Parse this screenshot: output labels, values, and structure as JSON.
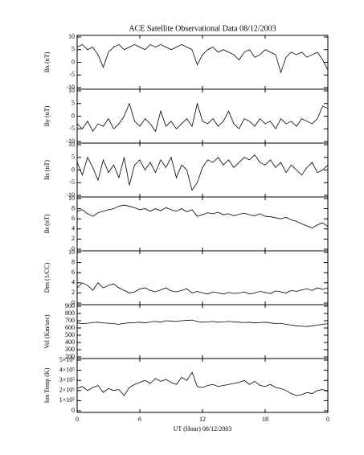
{
  "chart_data": [
    {
      "type": "line",
      "title": "ACE Satellite Observational Data   08/12/2003",
      "ylabel": "Bx (nT)",
      "color": "#000000",
      "ylim": [
        -10,
        10
      ],
      "yticks": [
        -10,
        -5,
        0,
        5,
        10
      ],
      "values": [
        6,
        7,
        5,
        6,
        3,
        -2,
        4,
        6,
        7,
        5,
        6,
        7,
        6,
        5,
        7,
        6,
        7,
        6,
        5,
        6,
        7,
        6,
        5,
        -1,
        3,
        5,
        6,
        4,
        5,
        4,
        3,
        1,
        4,
        5,
        2,
        3,
        5,
        4,
        3,
        -4,
        2,
        4,
        3,
        4,
        2,
        3,
        4,
        1,
        -3
      ]
    },
    {
      "type": "line",
      "ylabel": "By (nT)",
      "color": "#000000",
      "ylim": [
        -10,
        10
      ],
      "yticks": [
        -10,
        -5,
        0,
        5,
        10
      ],
      "values": [
        -3,
        -5,
        -2,
        -6,
        -3,
        -4,
        -1,
        -5,
        -3,
        0,
        5,
        -2,
        -4,
        -1,
        -3,
        -6,
        2,
        -4,
        -2,
        -5,
        -3,
        -1,
        -4,
        5,
        -2,
        -3,
        -1,
        -4,
        -2,
        2,
        -3,
        -5,
        -1,
        -2,
        -4,
        -1,
        -3,
        -2,
        -5,
        -1,
        -3,
        -2,
        -4,
        -1,
        -2,
        -3,
        -1,
        4,
        3
      ]
    },
    {
      "type": "line",
      "ylabel": "Bz (nT)",
      "color": "#000000",
      "ylim": [
        -10,
        10
      ],
      "yticks": [
        -10,
        -5,
        0,
        5,
        10
      ],
      "values": [
        3,
        -2,
        5,
        1,
        -4,
        4,
        -1,
        2,
        -3,
        5,
        -6,
        2,
        4,
        0,
        3,
        -1,
        4,
        1,
        5,
        -3,
        2,
        0,
        -8,
        -5,
        1,
        4,
        3,
        5,
        2,
        4,
        1,
        3,
        5,
        4,
        6,
        3,
        2,
        4,
        1,
        3,
        -1,
        2,
        0,
        -2,
        1,
        3,
        -1,
        0,
        2
      ]
    },
    {
      "type": "line",
      "ylabel": "Bt (nT)",
      "color": "#000000",
      "ylim": [
        0,
        10
      ],
      "yticks": [
        0,
        2,
        4,
        6,
        8,
        10
      ],
      "values": [
        7.5,
        7.8,
        7,
        6.5,
        7.2,
        7.5,
        7.8,
        8,
        8.5,
        8.7,
        8.5,
        8.2,
        7.8,
        8,
        7.5,
        8,
        7.6,
        8.2,
        7.8,
        7.5,
        8,
        7.4,
        7.8,
        6.5,
        6.8,
        7.2,
        7,
        7.3,
        6.8,
        7,
        6.6,
        6.9,
        7.1,
        6.8,
        6.6,
        7,
        6.5,
        6.4,
        6.2,
        6,
        6.3,
        5.8,
        5.5,
        5,
        4.6,
        4.2,
        4.8,
        5.2,
        4.5
      ]
    },
    {
      "type": "line",
      "ylabel": "Den (1/CC)",
      "color": "#000000",
      "ylim": [
        0,
        10
      ],
      "yticks": [
        0,
        2,
        4,
        6,
        8,
        10
      ],
      "values": [
        3,
        4,
        3.5,
        2.5,
        4,
        3,
        3.5,
        3.8,
        3,
        2.5,
        2,
        2.2,
        2.8,
        3,
        2.5,
        2.2,
        2.6,
        3,
        2.4,
        2.2,
        2.5,
        2.8,
        2,
        2.3,
        2,
        1.8,
        2.2,
        2,
        1.8,
        2.1,
        1.9,
        2,
        2.2,
        1.8,
        2,
        2.3,
        2.1,
        1.9,
        2.4,
        2.2,
        2,
        2.5,
        2.3,
        2.6,
        2.8,
        2.5,
        3,
        2.7,
        3
      ]
    },
    {
      "type": "line",
      "ylabel": "Vel (Km/sec)",
      "color": "#000000",
      "ylim": [
        200,
        900
      ],
      "yticks": [
        200,
        300,
        400,
        500,
        600,
        700,
        800,
        900
      ],
      "values": [
        670,
        660,
        665,
        675,
        680,
        670,
        665,
        660,
        650,
        665,
        670,
        675,
        680,
        670,
        685,
        690,
        680,
        700,
        695,
        690,
        700,
        705,
        710,
        690,
        680,
        685,
        690,
        680,
        685,
        690,
        685,
        680,
        675,
        680,
        670,
        675,
        680,
        670,
        660,
        665,
        650,
        640,
        630,
        625,
        620,
        630,
        640,
        650,
        660
      ]
    },
    {
      "type": "line",
      "ylabel": "Ion Temp (K)",
      "color": "#000000",
      "xlabel": "UT (Hour)   08/12/2003",
      "ylim": [
        0,
        500000
      ],
      "yticks": [
        0,
        {
          "value": 100000,
          "label": "1×10⁵"
        },
        {
          "value": 200000,
          "label": "2×10⁵"
        },
        {
          "value": 300000,
          "label": "3×10⁵"
        },
        {
          "value": 400000,
          "label": "4×10⁵"
        },
        {
          "value": 500000,
          "label": "5×10⁵"
        }
      ],
      "xlim": [
        0,
        24
      ],
      "xticks": [
        0,
        6,
        12,
        18,
        {
          "value": 24,
          "label": "0"
        }
      ],
      "x": [
        0,
        0.5,
        1,
        1.5,
        2,
        2.5,
        3,
        3.5,
        4,
        4.5,
        5,
        5.5,
        6,
        6.5,
        7,
        7.5,
        8,
        8.5,
        9,
        9.5,
        10,
        10.5,
        11,
        11.5,
        12,
        12.5,
        13,
        13.5,
        14,
        14.5,
        15,
        15.5,
        16,
        16.5,
        17,
        17.5,
        18,
        18.5,
        19,
        19.5,
        20,
        20.5,
        21,
        21.5,
        22,
        22.5,
        23,
        23.5,
        24
      ],
      "values": [
        220000,
        240000,
        200000,
        230000,
        250000,
        180000,
        220000,
        200000,
        210000,
        150000,
        230000,
        260000,
        280000,
        300000,
        270000,
        320000,
        290000,
        310000,
        280000,
        260000,
        330000,
        300000,
        380000,
        240000,
        230000,
        250000,
        260000,
        240000,
        250000,
        260000,
        270000,
        280000,
        300000,
        260000,
        290000,
        250000,
        240000,
        260000,
        230000,
        220000,
        200000,
        170000,
        150000,
        160000,
        180000,
        170000,
        200000,
        210000,
        190000
      ]
    }
  ]
}
